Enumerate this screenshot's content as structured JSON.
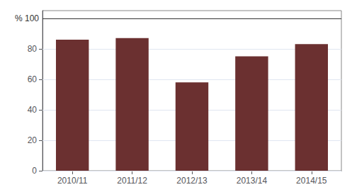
{
  "chart_data": {
    "type": "bar",
    "categories": [
      "2010/11",
      "2011/12",
      "2012/13",
      "2013/14",
      "2014/15"
    ],
    "values": [
      86,
      87,
      58,
      75,
      83
    ],
    "color": "#6B3030",
    "ylim": [
      0,
      105
    ],
    "yticks": [
      0,
      20,
      40,
      60,
      80
    ],
    "grid": true,
    "annotations": [
      {
        "text": "% 100",
        "y": 100
      }
    ]
  }
}
